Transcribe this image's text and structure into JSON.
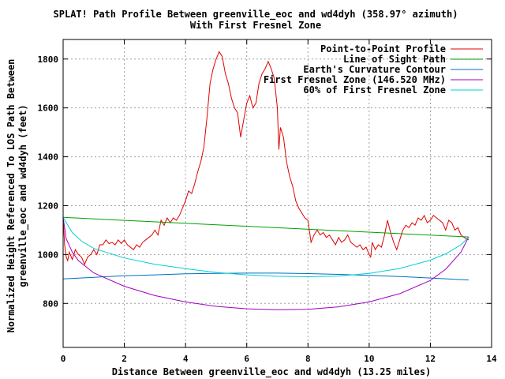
{
  "chart_data": {
    "type": "line",
    "title_line1": "SPLAT! Path Profile Between greenville_eoc and wd4dyh (358.97° azimuth)",
    "title_line2": "With First Fresnel Zone",
    "xlabel": "Distance Between greenville_eoc and wd4dyh (13.25 miles)",
    "ylabel_line1": "Normalized Height Referenced To LOS Path Between",
    "ylabel_line2": "greenville_eoc and wd4dyh (feet)",
    "xlim": [
      0,
      14
    ],
    "ylim": [
      620,
      1880
    ],
    "x_ticks": [
      0,
      2,
      4,
      6,
      8,
      10,
      12,
      14
    ],
    "y_ticks": [
      800,
      1000,
      1200,
      1400,
      1600,
      1800
    ],
    "grid": true,
    "legend_position": "top-right",
    "series": [
      {
        "name": "Point-to-Point Profile",
        "color": "#e00000",
        "points": [
          [
            0.0,
            1150
          ],
          [
            0.05,
            1040
          ],
          [
            0.1,
            990
          ],
          [
            0.15,
            975
          ],
          [
            0.2,
            1010
          ],
          [
            0.3,
            980
          ],
          [
            0.4,
            1020
          ],
          [
            0.5,
            1000
          ],
          [
            0.6,
            990
          ],
          [
            0.7,
            960
          ],
          [
            0.8,
            990
          ],
          [
            0.9,
            1000
          ],
          [
            1.0,
            1020
          ],
          [
            1.1,
            1000
          ],
          [
            1.2,
            1040
          ],
          [
            1.3,
            1040
          ],
          [
            1.4,
            1060
          ],
          [
            1.5,
            1045
          ],
          [
            1.6,
            1050
          ],
          [
            1.7,
            1040
          ],
          [
            1.8,
            1060
          ],
          [
            1.9,
            1045
          ],
          [
            2.0,
            1060
          ],
          [
            2.1,
            1040
          ],
          [
            2.2,
            1030
          ],
          [
            2.3,
            1020
          ],
          [
            2.4,
            1040
          ],
          [
            2.5,
            1030
          ],
          [
            2.6,
            1050
          ],
          [
            2.7,
            1060
          ],
          [
            2.8,
            1070
          ],
          [
            2.9,
            1080
          ],
          [
            3.0,
            1100
          ],
          [
            3.1,
            1080
          ],
          [
            3.2,
            1140
          ],
          [
            3.3,
            1120
          ],
          [
            3.4,
            1150
          ],
          [
            3.5,
            1130
          ],
          [
            3.6,
            1150
          ],
          [
            3.7,
            1140
          ],
          [
            3.8,
            1160
          ],
          [
            3.9,
            1190
          ],
          [
            4.0,
            1220
          ],
          [
            4.1,
            1260
          ],
          [
            4.2,
            1250
          ],
          [
            4.3,
            1290
          ],
          [
            4.4,
            1340
          ],
          [
            4.5,
            1380
          ],
          [
            4.6,
            1440
          ],
          [
            4.7,
            1560
          ],
          [
            4.8,
            1700
          ],
          [
            4.9,
            1760
          ],
          [
            5.0,
            1800
          ],
          [
            5.1,
            1830
          ],
          [
            5.2,
            1810
          ],
          [
            5.3,
            1740
          ],
          [
            5.4,
            1700
          ],
          [
            5.5,
            1640
          ],
          [
            5.6,
            1600
          ],
          [
            5.7,
            1580
          ],
          [
            5.8,
            1480
          ],
          [
            5.9,
            1550
          ],
          [
            6.0,
            1620
          ],
          [
            6.1,
            1650
          ],
          [
            6.2,
            1600
          ],
          [
            6.3,
            1620
          ],
          [
            6.4,
            1700
          ],
          [
            6.5,
            1740
          ],
          [
            6.6,
            1760
          ],
          [
            6.7,
            1790
          ],
          [
            6.8,
            1760
          ],
          [
            6.9,
            1720
          ],
          [
            7.0,
            1600
          ],
          [
            7.05,
            1430
          ],
          [
            7.1,
            1520
          ],
          [
            7.2,
            1480
          ],
          [
            7.3,
            1380
          ],
          [
            7.4,
            1320
          ],
          [
            7.5,
            1280
          ],
          [
            7.6,
            1220
          ],
          [
            7.7,
            1190
          ],
          [
            7.8,
            1170
          ],
          [
            7.9,
            1150
          ],
          [
            8.0,
            1140
          ],
          [
            8.1,
            1050
          ],
          [
            8.2,
            1080
          ],
          [
            8.3,
            1100
          ],
          [
            8.4,
            1080
          ],
          [
            8.5,
            1090
          ],
          [
            8.6,
            1070
          ],
          [
            8.7,
            1080
          ],
          [
            8.8,
            1060
          ],
          [
            8.9,
            1040
          ],
          [
            9.0,
            1070
          ],
          [
            9.1,
            1050
          ],
          [
            9.2,
            1060
          ],
          [
            9.3,
            1080
          ],
          [
            9.4,
            1050
          ],
          [
            9.5,
            1040
          ],
          [
            9.6,
            1030
          ],
          [
            9.7,
            1040
          ],
          [
            9.8,
            1020
          ],
          [
            9.9,
            1030
          ],
          [
            10.0,
            1000
          ],
          [
            10.05,
            990
          ],
          [
            10.1,
            1050
          ],
          [
            10.2,
            1020
          ],
          [
            10.3,
            1040
          ],
          [
            10.4,
            1030
          ],
          [
            10.5,
            1080
          ],
          [
            10.6,
            1140
          ],
          [
            10.7,
            1090
          ],
          [
            10.8,
            1050
          ],
          [
            10.9,
            1020
          ],
          [
            11.0,
            1060
          ],
          [
            11.1,
            1100
          ],
          [
            11.2,
            1120
          ],
          [
            11.3,
            1110
          ],
          [
            11.4,
            1130
          ],
          [
            11.5,
            1120
          ],
          [
            11.6,
            1150
          ],
          [
            11.7,
            1140
          ],
          [
            11.8,
            1160
          ],
          [
            11.9,
            1130
          ],
          [
            12.0,
            1140
          ],
          [
            12.1,
            1160
          ],
          [
            12.2,
            1150
          ],
          [
            12.3,
            1140
          ],
          [
            12.4,
            1130
          ],
          [
            12.5,
            1100
          ],
          [
            12.6,
            1140
          ],
          [
            12.7,
            1130
          ],
          [
            12.8,
            1100
          ],
          [
            12.9,
            1110
          ],
          [
            13.0,
            1080
          ],
          [
            13.1,
            1070
          ],
          [
            13.25,
            1060
          ]
        ]
      },
      {
        "name": "Line of Sight Path",
        "color": "#00a000",
        "points": [
          [
            0,
            1152
          ],
          [
            13.25,
            1072
          ]
        ]
      },
      {
        "name": "Earth's Curvature Contour",
        "color": "#0070c0",
        "points": [
          [
            0,
            900
          ],
          [
            1,
            907
          ],
          [
            2,
            913
          ],
          [
            3,
            917
          ],
          [
            4,
            921
          ],
          [
            5,
            923
          ],
          [
            6,
            924
          ],
          [
            7,
            924
          ],
          [
            8,
            922
          ],
          [
            9,
            919
          ],
          [
            10,
            915
          ],
          [
            11,
            910
          ],
          [
            12,
            904
          ],
          [
            13.25,
            896
          ]
        ]
      },
      {
        "name": "First Fresnel Zone (146.520 MHz)",
        "color": "#a000c0",
        "points": [
          [
            0,
            1152
          ],
          [
            0.1,
            1065
          ],
          [
            0.3,
            1010
          ],
          [
            0.5,
            975
          ],
          [
            1,
            925
          ],
          [
            2,
            870
          ],
          [
            3,
            832
          ],
          [
            4,
            806
          ],
          [
            5,
            788
          ],
          [
            6,
            778
          ],
          [
            7,
            774
          ],
          [
            8,
            776
          ],
          [
            9,
            786
          ],
          [
            10,
            806
          ],
          [
            11,
            840
          ],
          [
            12,
            894
          ],
          [
            12.5,
            940
          ],
          [
            13,
            1010
          ],
          [
            13.25,
            1072
          ]
        ]
      },
      {
        "name": "60% of First Fresnel Zone",
        "color": "#00d0d0",
        "points": [
          [
            0,
            1152
          ],
          [
            0.3,
            1090
          ],
          [
            0.6,
            1055
          ],
          [
            1,
            1025
          ],
          [
            2,
            986
          ],
          [
            3,
            960
          ],
          [
            4,
            942
          ],
          [
            5,
            927
          ],
          [
            6,
            917
          ],
          [
            7,
            911
          ],
          [
            8,
            909
          ],
          [
            9,
            912
          ],
          [
            10,
            923
          ],
          [
            11,
            943
          ],
          [
            12,
            977
          ],
          [
            12.5,
            1003
          ],
          [
            13,
            1040
          ],
          [
            13.25,
            1072
          ]
        ]
      }
    ]
  }
}
